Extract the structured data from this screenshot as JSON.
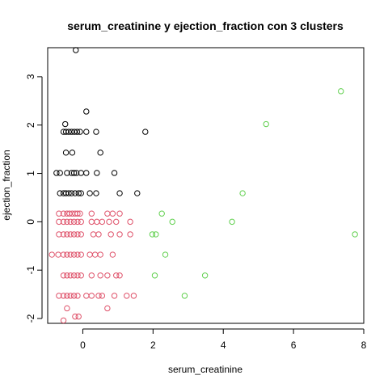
{
  "chart_data": {
    "type": "scatter",
    "title": "serum_creatinine  y  ejection_fraction con  3  clusters",
    "xlabel": "serum_creatinine",
    "ylabel": "ejection_fraction",
    "xlim": [
      -1.0,
      8.0
    ],
    "ylim": [
      -2.1,
      3.6
    ],
    "xticks": [
      0,
      2,
      4,
      6,
      8
    ],
    "yticks": [
      -2,
      -1,
      0,
      1,
      2,
      3
    ],
    "grid": false,
    "legend": "none",
    "colors": {
      "cluster_1": "#000000",
      "cluster_2": "#DF536B",
      "cluster_3": "#61D04F"
    },
    "series": [
      {
        "color": "cluster_1",
        "points": [
          [
            -0.2,
            3.55
          ],
          [
            0.1,
            2.28
          ],
          [
            -0.5,
            2.02
          ],
          [
            -0.55,
            1.86
          ],
          [
            -0.48,
            1.86
          ],
          [
            -0.4,
            1.86
          ],
          [
            -0.32,
            1.86
          ],
          [
            -0.24,
            1.86
          ],
          [
            -0.16,
            1.86
          ],
          [
            -0.08,
            1.86
          ],
          [
            0.1,
            1.86
          ],
          [
            0.38,
            1.86
          ],
          [
            1.78,
            1.86
          ],
          [
            -0.48,
            1.43
          ],
          [
            -0.3,
            1.43
          ],
          [
            0.5,
            1.43
          ],
          [
            -0.75,
            1.01
          ],
          [
            -0.65,
            1.01
          ],
          [
            -0.45,
            1.01
          ],
          [
            -0.32,
            1.01
          ],
          [
            -0.25,
            1.01
          ],
          [
            -0.18,
            1.01
          ],
          [
            -0.05,
            1.01
          ],
          [
            0.1,
            1.01
          ],
          [
            0.4,
            1.01
          ],
          [
            0.9,
            1.01
          ],
          [
            -0.65,
            0.59
          ],
          [
            -0.55,
            0.59
          ],
          [
            -0.48,
            0.59
          ],
          [
            -0.4,
            0.59
          ],
          [
            -0.32,
            0.59
          ],
          [
            -0.22,
            0.59
          ],
          [
            -0.12,
            0.59
          ],
          [
            -0.05,
            0.59
          ],
          [
            0.2,
            0.59
          ],
          [
            0.38,
            0.59
          ],
          [
            1.05,
            0.59
          ],
          [
            1.55,
            0.59
          ]
        ]
      },
      {
        "color": "cluster_2",
        "points": [
          [
            -0.68,
            0.17
          ],
          [
            -0.55,
            0.17
          ],
          [
            -0.45,
            0.17
          ],
          [
            -0.38,
            0.17
          ],
          [
            -0.3,
            0.17
          ],
          [
            -0.22,
            0.17
          ],
          [
            -0.15,
            0.17
          ],
          [
            -0.08,
            0.17
          ],
          [
            0.25,
            0.17
          ],
          [
            0.7,
            0.17
          ],
          [
            0.85,
            0.17
          ],
          [
            1.05,
            0.17
          ],
          [
            -0.68,
            0.0
          ],
          [
            -0.55,
            0.0
          ],
          [
            -0.45,
            0.0
          ],
          [
            -0.35,
            0.0
          ],
          [
            -0.25,
            0.0
          ],
          [
            -0.15,
            0.0
          ],
          [
            -0.05,
            0.0
          ],
          [
            0.25,
            0.0
          ],
          [
            0.4,
            0.0
          ],
          [
            0.55,
            0.0
          ],
          [
            0.75,
            0.0
          ],
          [
            0.95,
            0.0
          ],
          [
            1.35,
            0.0
          ],
          [
            -0.68,
            -0.26
          ],
          [
            -0.55,
            -0.26
          ],
          [
            -0.45,
            -0.26
          ],
          [
            -0.35,
            -0.26
          ],
          [
            -0.25,
            -0.26
          ],
          [
            -0.15,
            -0.26
          ],
          [
            -0.05,
            -0.26
          ],
          [
            0.3,
            -0.26
          ],
          [
            0.45,
            -0.26
          ],
          [
            0.8,
            -0.26
          ],
          [
            1.05,
            -0.26
          ],
          [
            1.35,
            -0.26
          ],
          [
            -0.88,
            -0.68
          ],
          [
            -0.7,
            -0.68
          ],
          [
            -0.55,
            -0.68
          ],
          [
            -0.45,
            -0.68
          ],
          [
            -0.35,
            -0.68
          ],
          [
            -0.25,
            -0.68
          ],
          [
            -0.15,
            -0.68
          ],
          [
            -0.05,
            -0.68
          ],
          [
            0.2,
            -0.68
          ],
          [
            0.35,
            -0.68
          ],
          [
            0.5,
            -0.68
          ],
          [
            0.85,
            -0.68
          ],
          [
            -0.55,
            -1.11
          ],
          [
            -0.45,
            -1.11
          ],
          [
            -0.35,
            -1.11
          ],
          [
            -0.25,
            -1.11
          ],
          [
            -0.15,
            -1.11
          ],
          [
            -0.05,
            -1.11
          ],
          [
            0.25,
            -1.11
          ],
          [
            0.5,
            -1.11
          ],
          [
            0.7,
            -1.11
          ],
          [
            0.95,
            -1.11
          ],
          [
            1.05,
            -1.11
          ],
          [
            -0.68,
            -1.53
          ],
          [
            -0.55,
            -1.53
          ],
          [
            -0.45,
            -1.53
          ],
          [
            -0.35,
            -1.53
          ],
          [
            -0.25,
            -1.53
          ],
          [
            -0.15,
            -1.53
          ],
          [
            0.1,
            -1.53
          ],
          [
            0.25,
            -1.53
          ],
          [
            0.45,
            -1.53
          ],
          [
            0.55,
            -1.53
          ],
          [
            0.9,
            -1.53
          ],
          [
            1.25,
            -1.53
          ],
          [
            1.45,
            -1.53
          ],
          [
            -0.45,
            -1.79
          ],
          [
            0.7,
            -1.79
          ],
          [
            -0.22,
            -1.96
          ],
          [
            -0.12,
            -1.96
          ],
          [
            -0.55,
            -2.04
          ]
        ]
      },
      {
        "color": "cluster_3",
        "points": [
          [
            7.35,
            2.7
          ],
          [
            5.22,
            2.02
          ],
          [
            4.55,
            0.59
          ],
          [
            2.25,
            0.17
          ],
          [
            2.55,
            0.0
          ],
          [
            4.25,
            0.0
          ],
          [
            1.98,
            -0.26
          ],
          [
            2.08,
            -0.26
          ],
          [
            7.75,
            -0.26
          ],
          [
            2.35,
            -0.68
          ],
          [
            2.05,
            -1.11
          ],
          [
            3.48,
            -1.11
          ],
          [
            2.9,
            -1.53
          ]
        ]
      }
    ]
  }
}
